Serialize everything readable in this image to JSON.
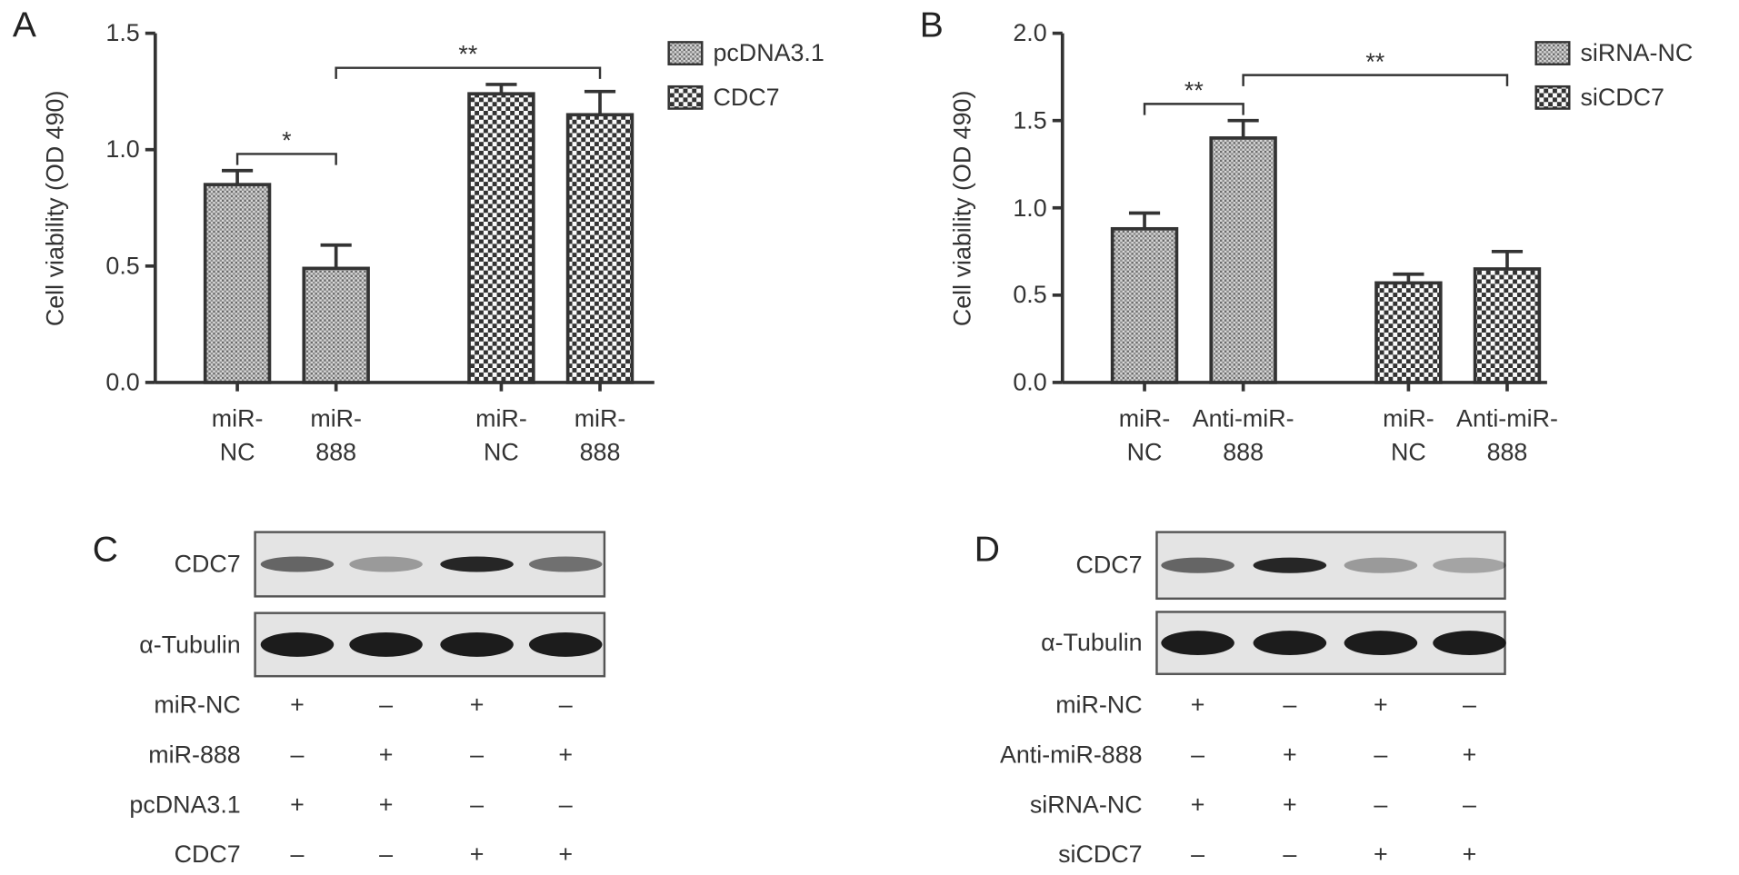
{
  "chart_data": [
    {
      "type": "bar",
      "panel": "A",
      "ylabel": "Cell viability (OD 490)",
      "categories": [
        "miR-\nNC",
        "miR-\n888",
        "miR-\nNC",
        "miR-\n888"
      ],
      "series": [
        {
          "name": "pcDNA3.1",
          "pattern": "fine",
          "values": [
            0.85,
            0.49,
            null,
            null
          ],
          "errors": [
            0.06,
            0.1,
            null,
            null
          ]
        },
        {
          "name": "CDC7",
          "pattern": "checker",
          "values": [
            null,
            null,
            1.24,
            1.15
          ],
          "errors": [
            null,
            null,
            0.04,
            0.1
          ]
        }
      ],
      "ylim": [
        0,
        1.5
      ],
      "yticks": [
        {
          "value": 0,
          "label": "0.0"
        },
        0.5,
        {
          "value": 1,
          "label": "1.0"
        },
        1.5
      ],
      "annotations": [
        {
          "text": "*",
          "from": 0,
          "to": 1
        },
        {
          "text": "**",
          "from": 1,
          "to": 3
        }
      ],
      "legend": "upper right"
    },
    {
      "type": "bar",
      "panel": "B",
      "ylabel": "Cell viability (OD 490)",
      "categories": [
        "miR-\nNC",
        "Anti-miR-\n888",
        "miR-\nNC",
        "Anti-miR-\n888"
      ],
      "series": [
        {
          "name": "siRNA-NC",
          "pattern": "fine",
          "values": [
            0.88,
            1.4,
            null,
            null
          ],
          "errors": [
            0.09,
            0.1,
            null,
            null
          ]
        },
        {
          "name": "siCDC7",
          "pattern": "checker",
          "values": [
            null,
            null,
            0.57,
            0.65
          ],
          "errors": [
            null,
            null,
            0.05,
            0.1
          ]
        }
      ],
      "ylim": [
        0,
        2
      ],
      "yticks": [
        {
          "value": 0,
          "label": "0.0"
        },
        0.5,
        {
          "value": 1,
          "label": "1.0"
        },
        1.5,
        {
          "value": 2,
          "label": "2.0"
        }
      ],
      "annotations": [
        {
          "text": "**",
          "from": 0,
          "to": 1
        },
        {
          "text": "**",
          "from": 1,
          "to": 3
        }
      ],
      "legend": "upper right"
    }
  ],
  "blots": [
    {
      "panel": "C",
      "rows": [
        "CDC7",
        "α-Tubulin"
      ],
      "conditions": [
        {
          "label": "miR-NC",
          "signs": [
            "+",
            "–",
            "+",
            "–"
          ]
        },
        {
          "label": "miR-888",
          "signs": [
            "–",
            "+",
            "–",
            "+"
          ]
        },
        {
          "label": "pcDNA3.1",
          "signs": [
            "+",
            "+",
            "–",
            "–"
          ]
        },
        {
          "label": "CDC7",
          "signs": [
            "–",
            "–",
            "+",
            "+"
          ]
        }
      ]
    },
    {
      "panel": "D",
      "rows": [
        "CDC7",
        "α-Tubulin"
      ],
      "conditions": [
        {
          "label": "miR-NC",
          "signs": [
            "+",
            "–",
            "+",
            "–"
          ]
        },
        {
          "label": "Anti-miR-888",
          "signs": [
            "–",
            "+",
            "–",
            "+"
          ]
        },
        {
          "label": "siRNA-NC",
          "signs": [
            "+",
            "+",
            "–",
            "–"
          ]
        },
        {
          "label": "siCDC7",
          "signs": [
            "–",
            "–",
            "+",
            "+"
          ]
        }
      ]
    }
  ]
}
